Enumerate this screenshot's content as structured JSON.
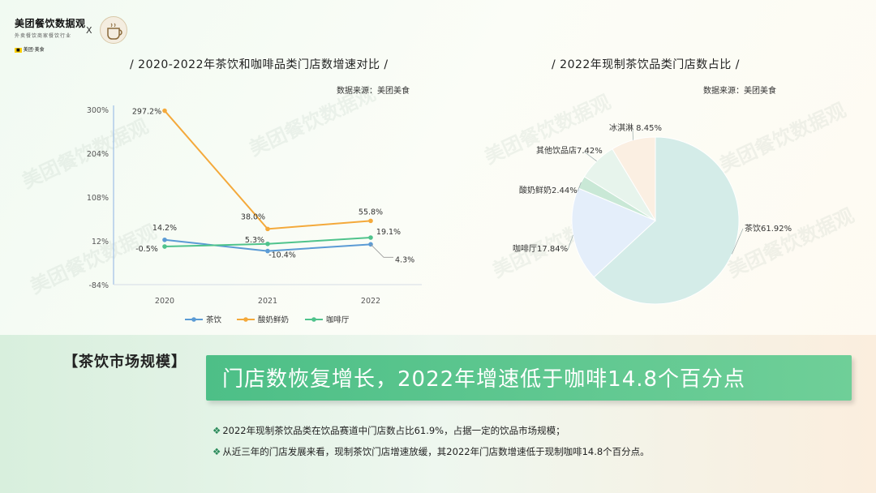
{
  "header": {
    "brand_title": "美团餐饮数据观",
    "brand_sub": "外卖餐饮商家餐饮行业",
    "brand_meituan": "美团·美食",
    "x_mark": "X"
  },
  "line_chart": {
    "title": "/ 2020-2022年茶饮和咖啡品类门店数增速对比 /",
    "source": "数据来源：美团美食"
  },
  "pie_chart": {
    "title": "/ 2022年现制茶饮品类门店数占比 /",
    "source": "数据来源：美团美食"
  },
  "chart_data": [
    {
      "type": "line",
      "title": "2020-2022年茶饮和咖啡品类门店数增速对比",
      "x": [
        "2020",
        "2021",
        "2022"
      ],
      "y_ticks": [
        "300%",
        "204%",
        "108%",
        "12%",
        "-84%"
      ],
      "ylim": [
        -84,
        300
      ],
      "series": [
        {
          "name": "茶饮",
          "values": [
            14.2,
            -10.4,
            4.3
          ],
          "labels": [
            "14.2%",
            "-10.4%",
            "4.3%"
          ],
          "color": "#5b9bd5"
        },
        {
          "name": "酸奶鲜奶",
          "values": [
            297.2,
            38.0,
            55.8
          ],
          "labels": [
            "297.2%",
            "38.0%",
            "55.8%"
          ],
          "color": "#f4a93b"
        },
        {
          "name": "咖啡厅",
          "values": [
            -0.5,
            5.3,
            19.1
          ],
          "labels": [
            "-0.5%",
            "5.3%",
            "19.1%"
          ],
          "color": "#4fc38c"
        }
      ],
      "grid": false,
      "legend": "bottom"
    },
    {
      "type": "pie",
      "title": "2022年现制茶饮品类门店数占比",
      "slices": [
        {
          "label": "茶饮61.92%",
          "value": 61.92,
          "color": "#d4ece8"
        },
        {
          "label": "咖啡厅17.84%",
          "value": 17.84,
          "color": "#e4eefa"
        },
        {
          "label": "酸奶鲜奶2.44%",
          "value": 2.44,
          "color": "#c9e8d6"
        },
        {
          "label": "其他饮品店7.42%",
          "value": 7.42,
          "color": "#e7f4ec"
        },
        {
          "label": "冰淇淋 8.45%",
          "value": 8.45,
          "color": "#fbefe2"
        }
      ]
    }
  ],
  "summary": {
    "tag": "【茶饮市场规模】",
    "headline": "门店数恢复增长，2022年增速低于咖啡14.8个百分点",
    "bullet_mark": "❖",
    "bullets": [
      "2022年现制茶饮品类在饮品赛道中门店数占比61.9%，占据一定的饮品市场规模；",
      "从近三年的门店发展来看，现制茶饮门店增速放缓，其2022年门店数增速低于现制咖啡14.8个百分点。"
    ]
  },
  "watermark": "美团餐饮数据观"
}
